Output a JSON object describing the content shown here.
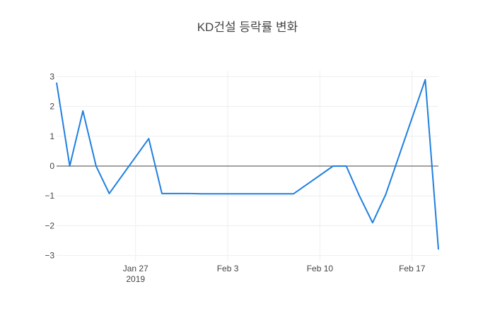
{
  "chart_data": {
    "type": "line",
    "title": "KD건설 등락률 변화",
    "x": [
      "2019-01-21",
      "2019-01-22",
      "2019-01-23",
      "2019-01-24",
      "2019-01-25",
      "2019-01-28",
      "2019-01-29",
      "2019-01-30",
      "2019-01-31",
      "2019-02-01",
      "2019-02-07",
      "2019-02-08",
      "2019-02-11",
      "2019-02-12",
      "2019-02-13",
      "2019-02-14",
      "2019-02-15",
      "2019-02-18",
      "2019-02-19"
    ],
    "series": [
      {
        "color": "#1f7fe0",
        "values": [
          2.8,
          0,
          1.85,
          0,
          -0.92,
          0.92,
          -0.92,
          -0.92,
          -0.92,
          -0.93,
          -0.93,
          -0.93,
          0,
          0,
          -1.0,
          -1.9,
          -0.95,
          2.9,
          -2.8
        ]
      }
    ],
    "xlim": [
      "2019-01-21",
      "2019-02-19"
    ],
    "xticks": [
      {
        "value": "2019-01-27",
        "label": "Jan 27"
      },
      {
        "value": "2019-02-03",
        "label": "Feb 3"
      },
      {
        "value": "2019-02-10",
        "label": "Feb 10"
      },
      {
        "value": "2019-02-17",
        "label": "Feb 17"
      }
    ],
    "xtick_year": "2019",
    "ylim": [
      -3.2,
      3.2
    ],
    "yticks": [
      {
        "value": -3,
        "label": "−3"
      },
      {
        "value": -2,
        "label": "−2"
      },
      {
        "value": -1,
        "label": "−1"
      },
      0,
      1,
      2,
      3
    ],
    "grid": true
  }
}
